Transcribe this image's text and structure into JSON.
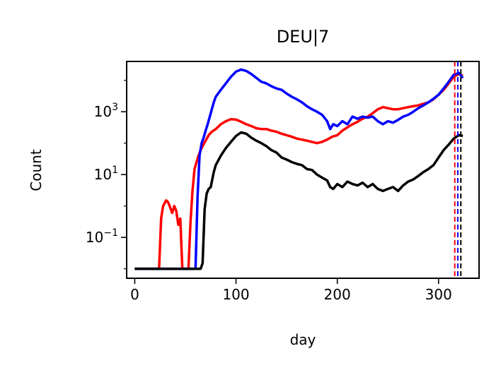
{
  "chart_data": {
    "type": "line",
    "title": "DEU|7",
    "xlabel": "day",
    "ylabel": "Count",
    "xlim": [
      -8,
      340
    ],
    "ylim": [
      0.005,
      40000
    ],
    "yscale": "log",
    "grid": false,
    "xticks": [
      0,
      100,
      200,
      300
    ],
    "xtick_labels": [
      "0",
      "100",
      "200",
      "300"
    ],
    "yticks": [
      0.1,
      10,
      1000
    ],
    "ytick_labels": [
      {
        "base": "10",
        "exp": "−1"
      },
      {
        "base": "10",
        "exp": "1"
      },
      {
        "base": "10",
        "exp": "3"
      }
    ],
    "series": [
      {
        "color": "#ff0000",
        "x": [
          0,
          24,
          26,
          28,
          31,
          33,
          35,
          37,
          39,
          41,
          43,
          45,
          47,
          49,
          51,
          53,
          55,
          57,
          59,
          61,
          63,
          65,
          67,
          70,
          73,
          76,
          80,
          85,
          90,
          95,
          100,
          105,
          110,
          115,
          120,
          125,
          130,
          135,
          140,
          145,
          150,
          155,
          160,
          165,
          170,
          175,
          180,
          185,
          190,
          195,
          200,
          205,
          210,
          215,
          220,
          225,
          230,
          235,
          240,
          245,
          250,
          255,
          260,
          265,
          270,
          275,
          280,
          285,
          290,
          295,
          300,
          305,
          310,
          315,
          320,
          324
        ],
        "y": [
          0.01,
          0.01,
          0.4,
          1.0,
          1.5,
          1.3,
          0.9,
          0.6,
          1.0,
          0.7,
          0.25,
          0.4,
          0.01,
          0.01,
          0.01,
          0.01,
          0.3,
          3.0,
          15,
          25,
          40,
          60,
          80,
          120,
          180,
          230,
          280,
          400,
          500,
          580,
          560,
          480,
          400,
          350,
          300,
          280,
          280,
          250,
          230,
          200,
          180,
          160,
          140,
          130,
          120,
          110,
          100,
          110,
          130,
          160,
          180,
          250,
          320,
          400,
          480,
          600,
          700,
          900,
          1200,
          1400,
          1300,
          1200,
          1200,
          1300,
          1400,
          1500,
          1600,
          1800,
          2000,
          2500,
          3500,
          5000,
          8000,
          13000,
          16000,
          14000
        ]
      },
      {
        "color": "#0000ff",
        "x": [
          0,
          58,
          60,
          62,
          64,
          66,
          68,
          70,
          72,
          75,
          78,
          80,
          85,
          90,
          95,
          100,
          105,
          110,
          115,
          120,
          125,
          130,
          135,
          140,
          145,
          150,
          155,
          160,
          165,
          170,
          175,
          180,
          185,
          190,
          193,
          196,
          200,
          205,
          210,
          215,
          220,
          225,
          230,
          235,
          240,
          245,
          250,
          255,
          260,
          265,
          270,
          275,
          280,
          285,
          290,
          295,
          300,
          305,
          310,
          315,
          320,
          324
        ],
        "y": [
          0.01,
          0.01,
          0.01,
          2.0,
          40,
          100,
          150,
          250,
          400,
          900,
          2000,
          3000,
          5000,
          8000,
          13000,
          19000,
          22000,
          20000,
          16000,
          12000,
          9000,
          8000,
          6500,
          5500,
          5000,
          3800,
          3000,
          2500,
          2000,
          1500,
          1200,
          1000,
          800,
          500,
          280,
          400,
          350,
          500,
          400,
          700,
          600,
          700,
          650,
          700,
          500,
          400,
          500,
          450,
          550,
          700,
          800,
          1000,
          1300,
          1600,
          2000,
          2600,
          3500,
          5500,
          9000,
          15000,
          17000,
          12000
        ]
      },
      {
        "color": "#000000",
        "x": [
          0,
          65,
          67,
          69,
          71,
          73,
          75,
          78,
          80,
          85,
          90,
          95,
          100,
          105,
          110,
          115,
          120,
          125,
          130,
          135,
          140,
          145,
          150,
          155,
          160,
          165,
          170,
          175,
          180,
          185,
          190,
          193,
          196,
          200,
          205,
          210,
          215,
          220,
          225,
          230,
          235,
          240,
          245,
          250,
          255,
          260,
          265,
          270,
          275,
          280,
          285,
          290,
          295,
          300,
          305,
          310,
          315,
          320,
          324
        ],
        "y": [
          0.01,
          0.01,
          0.015,
          0.8,
          2.5,
          3.5,
          4,
          12,
          20,
          40,
          70,
          110,
          170,
          220,
          200,
          150,
          120,
          100,
          80,
          60,
          50,
          35,
          30,
          25,
          22,
          20,
          15,
          14,
          10,
          8,
          6.5,
          4,
          3.5,
          5,
          4,
          6,
          5,
          4.5,
          5.5,
          4,
          5,
          3.5,
          3,
          3.5,
          4,
          3,
          4.5,
          6,
          7,
          9,
          12,
          15,
          20,
          35,
          60,
          90,
          140,
          180,
          170
        ]
      }
    ],
    "vlines": [
      {
        "x": 316,
        "color": "#ff0000",
        "style": "dashed"
      },
      {
        "x": 319,
        "color": "#0000ff",
        "style": "dashed"
      },
      {
        "x": 322,
        "color": "#000000",
        "style": "dashed"
      }
    ]
  }
}
